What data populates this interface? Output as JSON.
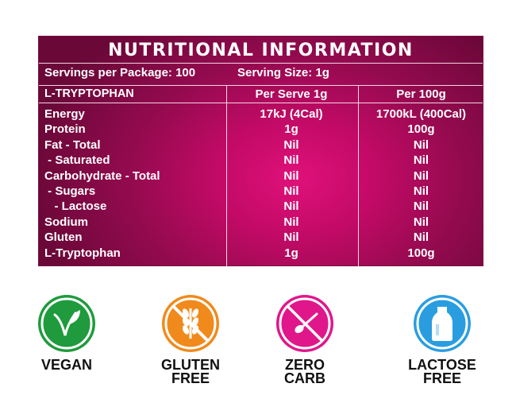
{
  "panel": {
    "title": "NUTRITIONAL INFORMATION",
    "servings_per_package": "Servings per Package: 100",
    "serving_size": "Serving Size: 1g",
    "headers": {
      "item": "L-TRYPTOPHAN",
      "per_serve": "Per Serve 1g",
      "per_100g": "Per 100g"
    },
    "rows": [
      {
        "label": "Energy",
        "per_serve": "17kJ (4Cal)",
        "per_100g": "1700kL (400Cal)"
      },
      {
        "label": "Protein",
        "per_serve": "1g",
        "per_100g": "100g"
      },
      {
        "label": "Fat - Total",
        "per_serve": "Nil",
        "per_100g": "Nil"
      },
      {
        "label": " - Saturated",
        "per_serve": "Nil",
        "per_100g": "Nil"
      },
      {
        "label": "Carbohydrate - Total",
        "per_serve": "Nil",
        "per_100g": "Nil"
      },
      {
        "label": " - Sugars",
        "per_serve": "Nil",
        "per_100g": "Nil"
      },
      {
        "label": "   - Lactose",
        "per_serve": "Nil",
        "per_100g": "Nil"
      },
      {
        "label": "Sodium",
        "per_serve": "Nil",
        "per_100g": "Nil"
      },
      {
        "label": "Gluten",
        "per_serve": "Nil",
        "per_100g": "Nil"
      },
      {
        "label": "L-Tryptophan",
        "per_serve": "1g",
        "per_100g": "100g"
      }
    ]
  },
  "badges": [
    {
      "icon": "vegan-leaf-icon",
      "color": "#1f9a3c",
      "line1": "VEGAN",
      "line2": ""
    },
    {
      "icon": "no-wheat-icon",
      "color": "#f08a1c",
      "line1": "GLUTEN",
      "line2": "FREE"
    },
    {
      "icon": "no-spoon-icon",
      "color": "#e0178a",
      "line1": "ZERO",
      "line2": "CARB"
    },
    {
      "icon": "milk-bottle-icon",
      "color": "#2a9de0",
      "line1": "LACTOSE",
      "line2": "FREE"
    }
  ]
}
